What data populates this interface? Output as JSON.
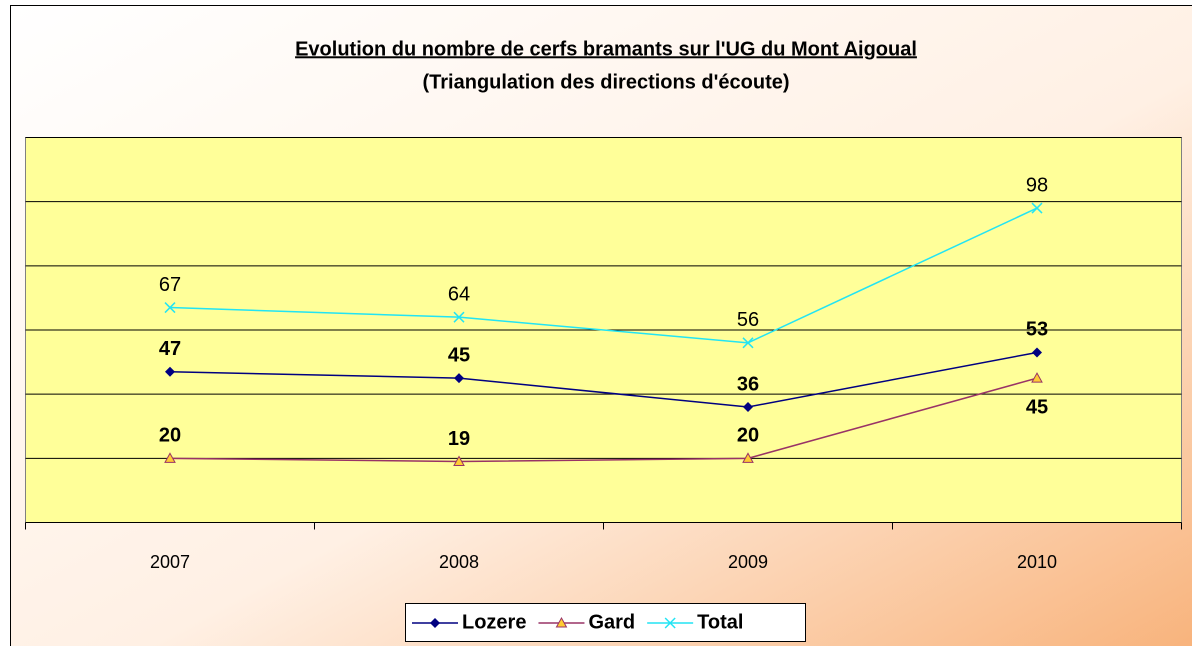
{
  "chart_data": {
    "type": "line",
    "title": "Evolution du nombre de cerfs bramants sur l'UG du Mont Aigoual",
    "subtitle": "(Triangulation des directions d'écoute)",
    "categories": [
      "2007",
      "2008",
      "2009",
      "2010"
    ],
    "series": [
      {
        "name": "Lozere",
        "color": "#000080",
        "values": [
          47,
          45,
          36,
          53
        ]
      },
      {
        "name": "Gard",
        "color": "#993366",
        "values": [
          20,
          19,
          20,
          45
        ]
      },
      {
        "name": "Total",
        "color": "#22e4f4",
        "values": [
          67,
          64,
          56,
          98
        ]
      }
    ],
    "ylim": [
      0,
      120
    ],
    "yticks": [
      0,
      20,
      40,
      60,
      80,
      100,
      120
    ],
    "grid": true,
    "legend": "bottom"
  }
}
